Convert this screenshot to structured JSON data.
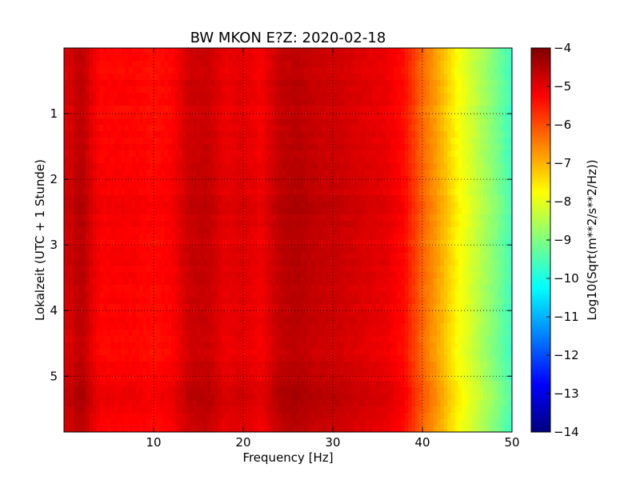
{
  "chart_data": {
    "type": "heatmap",
    "title": "BW MKON E?Z: 2020-02-18",
    "xlabel": "Frequency [Hz]",
    "ylabel": "Lokalzeit (UTC + 1 Stunde)",
    "xlim": [
      0,
      50
    ],
    "ylim": [
      5.85,
      0
    ],
    "y_inverted": true,
    "xticks": [
      10,
      20,
      30,
      40,
      50
    ],
    "xtick_labels": [
      "10",
      "20",
      "30",
      "40",
      "50"
    ],
    "yticks": [
      1,
      2,
      3,
      4,
      5
    ],
    "ytick_labels": [
      "1",
      "2",
      "3",
      "4",
      "5"
    ],
    "grid": true,
    "colormap": "jet",
    "colorbar": {
      "label": "Log10(Sqrt(m**2/s**2/Hz))",
      "range": [
        -14,
        -4
      ],
      "ticks": [
        -4,
        -5,
        -6,
        -7,
        -8,
        -9,
        -10,
        -11,
        -12,
        -13,
        -14
      ],
      "tick_labels": [
        "−4",
        "−5",
        "−6",
        "−7",
        "−8",
        "−9",
        "−10",
        "−11",
        "−12",
        "−13",
        "−14"
      ]
    },
    "spectrum_profile": {
      "frequency_hz": [
        0,
        2,
        3,
        4,
        6,
        8,
        10,
        12,
        14,
        16,
        18,
        20,
        22,
        24,
        26,
        28,
        30,
        32,
        34,
        36,
        38,
        40,
        42,
        44,
        46,
        48,
        50
      ],
      "level": [
        -5.0,
        -4.6,
        -5.0,
        -5.3,
        -5.3,
        -5.3,
        -5.4,
        -5.3,
        -4.8,
        -4.75,
        -5.1,
        -5.0,
        -5.2,
        -4.7,
        -4.6,
        -4.75,
        -4.8,
        -4.9,
        -5.0,
        -5.1,
        -5.4,
        -6.3,
        -7.0,
        -7.8,
        -8.4,
        -9.0,
        -9.7
      ]
    },
    "time_modulation": {
      "hours": [
        0,
        0.5,
        1,
        1.5,
        2,
        2.5,
        3,
        3.5,
        4,
        4.5,
        5,
        5.3,
        5.5,
        5.85
      ],
      "delta": [
        0.0,
        0.05,
        0.0,
        0.05,
        0.05,
        0.15,
        0.05,
        0.1,
        0.05,
        0.0,
        0.1,
        0.25,
        0.1,
        0.0
      ]
    }
  }
}
